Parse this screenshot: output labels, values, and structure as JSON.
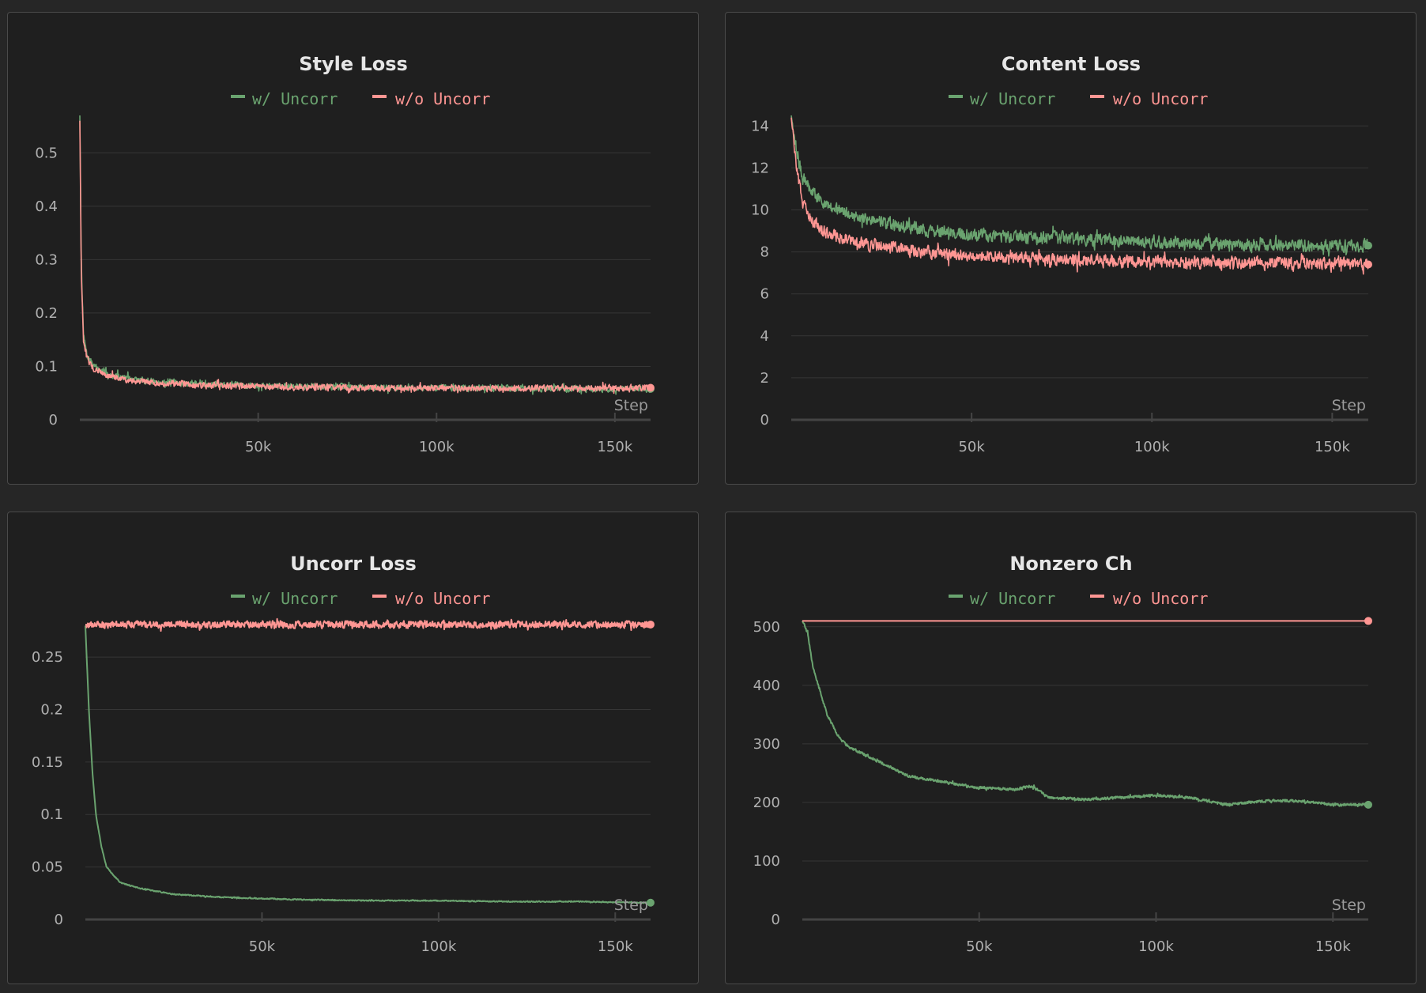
{
  "colors": {
    "w_uncorr": "#6aa36f",
    "wo_uncorr": "#ff9693"
  },
  "chart_data": [
    {
      "type": "line",
      "title": "Style Loss",
      "xlabel": "Step",
      "xlim": [
        0,
        160000
      ],
      "ylim": [
        0,
        0.57
      ],
      "xticks": [
        50000,
        100000,
        150000
      ],
      "xtick_labels": [
        "50k",
        "100k",
        "150k"
      ],
      "yticks": [
        0,
        0.1,
        0.2,
        0.3,
        0.4,
        0.5
      ],
      "ytick_labels": [
        "0",
        "0.1",
        "0.2",
        "0.3",
        "0.4",
        "0.5"
      ],
      "series": [
        {
          "name": "w/ Uncorr",
          "color": "#6aa36f",
          "noise": 0.008,
          "points": [
            [
              0,
              0.57
            ],
            [
              400,
              0.3
            ],
            [
              1000,
              0.16
            ],
            [
              2000,
              0.12
            ],
            [
              4000,
              0.1
            ],
            [
              8000,
              0.085
            ],
            [
              15000,
              0.075
            ],
            [
              30000,
              0.068
            ],
            [
              50000,
              0.064
            ],
            [
              80000,
              0.061
            ],
            [
              110000,
              0.059
            ],
            [
              140000,
              0.058
            ],
            [
              160000,
              0.058
            ]
          ]
        },
        {
          "name": "w/o Uncorr",
          "color": "#ff9693",
          "noise": 0.008,
          "points": [
            [
              0,
              0.56
            ],
            [
              400,
              0.28
            ],
            [
              1000,
              0.15
            ],
            [
              2000,
              0.115
            ],
            [
              4000,
              0.095
            ],
            [
              8000,
              0.082
            ],
            [
              15000,
              0.073
            ],
            [
              30000,
              0.066
            ],
            [
              50000,
              0.062
            ],
            [
              80000,
              0.06
            ],
            [
              110000,
              0.059
            ],
            [
              140000,
              0.059
            ],
            [
              160000,
              0.06
            ]
          ]
        }
      ]
    },
    {
      "type": "line",
      "title": "Content Loss",
      "xlabel": "Step",
      "xlim": [
        0,
        160000
      ],
      "ylim": [
        0,
        14.5
      ],
      "xticks": [
        50000,
        100000,
        150000
      ],
      "xtick_labels": [
        "50k",
        "100k",
        "150k"
      ],
      "yticks": [
        0,
        2,
        4,
        6,
        8,
        10,
        12,
        14
      ],
      "ytick_labels": [
        "0",
        "2",
        "4",
        "6",
        "8",
        "10",
        "12",
        "14"
      ],
      "series": [
        {
          "name": "w/ Uncorr",
          "color": "#6aa36f",
          "noise": 0.4,
          "points": [
            [
              0,
              14.5
            ],
            [
              1000,
              13.2
            ],
            [
              3000,
              11.6
            ],
            [
              6000,
              10.8
            ],
            [
              10000,
              10.2
            ],
            [
              20000,
              9.6
            ],
            [
              35000,
              9.1
            ],
            [
              50000,
              8.8
            ],
            [
              80000,
              8.6
            ],
            [
              110000,
              8.4
            ],
            [
              140000,
              8.3
            ],
            [
              160000,
              8.3
            ]
          ]
        },
        {
          "name": "w/o Uncorr",
          "color": "#ff9693",
          "noise": 0.4,
          "points": [
            [
              0,
              14.4
            ],
            [
              1000,
              12.6
            ],
            [
              3000,
              10.4
            ],
            [
              6000,
              9.4
            ],
            [
              10000,
              8.9
            ],
            [
              20000,
              8.4
            ],
            [
              35000,
              8.0
            ],
            [
              50000,
              7.8
            ],
            [
              80000,
              7.6
            ],
            [
              110000,
              7.5
            ],
            [
              140000,
              7.45
            ],
            [
              160000,
              7.4
            ]
          ]
        }
      ]
    },
    {
      "type": "line",
      "title": "Uncorr Loss",
      "xlabel": "Step",
      "xlim": [
        0,
        160000
      ],
      "ylim": [
        0,
        0.29
      ],
      "xticks": [
        50000,
        100000,
        150000
      ],
      "xtick_labels": [
        "50k",
        "100k",
        "150k"
      ],
      "yticks": [
        0,
        0.05,
        0.1,
        0.15,
        0.2,
        0.25
      ],
      "ytick_labels": [
        "0",
        "0.05",
        "0.1",
        "0.15",
        "0.2",
        "0.25"
      ],
      "series": [
        {
          "name": "w/ Uncorr",
          "color": "#6aa36f",
          "noise": 0.0007,
          "points": [
            [
              0,
              0.28
            ],
            [
              1000,
              0.2
            ],
            [
              2000,
              0.14
            ],
            [
              3000,
              0.1
            ],
            [
              4500,
              0.07
            ],
            [
              6000,
              0.05
            ],
            [
              8000,
              0.042
            ],
            [
              10000,
              0.035
            ],
            [
              15000,
              0.03
            ],
            [
              25000,
              0.024
            ],
            [
              40000,
              0.021
            ],
            [
              60000,
              0.019
            ],
            [
              80000,
              0.018
            ],
            [
              100000,
              0.018
            ],
            [
              120000,
              0.017
            ],
            [
              140000,
              0.017
            ],
            [
              160000,
              0.016
            ]
          ]
        },
        {
          "name": "w/o Uncorr",
          "color": "#ff9693",
          "noise": 0.0045,
          "points": [
            [
              0,
              0.281
            ],
            [
              40000,
              0.281
            ],
            [
              80000,
              0.281
            ],
            [
              120000,
              0.281
            ],
            [
              160000,
              0.281
            ]
          ]
        }
      ]
    },
    {
      "type": "line",
      "title": "Nonzero Ch",
      "xlabel": "Step",
      "xlim": [
        0,
        160000
      ],
      "ylim": [
        0,
        520
      ],
      "xticks": [
        50000,
        100000,
        150000
      ],
      "xtick_labels": [
        "50k",
        "100k",
        "150k"
      ],
      "yticks": [
        0,
        100,
        200,
        300,
        400,
        500
      ],
      "ytick_labels": [
        "0",
        "100",
        "200",
        "300",
        "400",
        "500"
      ],
      "series": [
        {
          "name": "w/ Uncorr",
          "color": "#6aa36f",
          "noise": 3,
          "points": [
            [
              0,
              510
            ],
            [
              1500,
              490
            ],
            [
              3000,
              430
            ],
            [
              5000,
              390
            ],
            [
              7000,
              350
            ],
            [
              10000,
              315
            ],
            [
              13000,
              295
            ],
            [
              20000,
              275
            ],
            [
              30000,
              245
            ],
            [
              40000,
              235
            ],
            [
              50000,
              225
            ],
            [
              60000,
              222
            ],
            [
              65000,
              228
            ],
            [
              70000,
              208
            ],
            [
              80000,
              205
            ],
            [
              100000,
              212
            ],
            [
              110000,
              208
            ],
            [
              120000,
              196
            ],
            [
              130000,
              202
            ],
            [
              140000,
              203
            ],
            [
              150000,
              196
            ],
            [
              160000,
              196
            ]
          ]
        },
        {
          "name": "w/o Uncorr",
          "color": "#ff9693",
          "noise": 0,
          "points": [
            [
              0,
              510
            ],
            [
              160000,
              510
            ]
          ]
        }
      ]
    }
  ]
}
